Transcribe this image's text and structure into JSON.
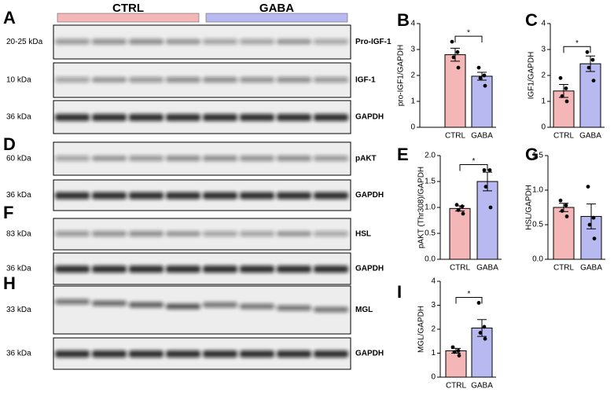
{
  "blots": {
    "groups": [
      {
        "name": "CTRL",
        "color": "#f4b6b6"
      },
      {
        "name": "GABA",
        "color": "#b7b9f0"
      }
    ],
    "panels": [
      {
        "letter": "A",
        "rows": [
          {
            "kda": "20-25 kDa",
            "label": "Pro-IGF-1"
          },
          {
            "kda": "10 kDa",
            "label": "IGF-1"
          },
          {
            "kda": "36 kDa",
            "label": "GAPDH"
          }
        ]
      },
      {
        "letter": "D",
        "rows": [
          {
            "kda": "60 kDa",
            "label": "pAKT"
          },
          {
            "kda": "36 kDa",
            "label": "GAPDH"
          }
        ]
      },
      {
        "letter": "F",
        "rows": [
          {
            "kda": "83  kDa",
            "label": "HSL"
          },
          {
            "kda": "36 kDa",
            "label": "GAPDH"
          }
        ]
      },
      {
        "letter": "H",
        "rows": [
          {
            "kda": "33  kDa",
            "label": "MGL"
          },
          {
            "kda": "36 kDa",
            "label": "GAPDH"
          }
        ]
      }
    ]
  },
  "chart_data": [
    {
      "type": "bar",
      "panel": "B",
      "ylabel": "pro-IGF1/GAPDH",
      "categories": [
        "CTRL",
        "GABA"
      ],
      "colors": [
        "#f4b6b6",
        "#b7b9f0"
      ],
      "values": [
        2.8,
        1.97
      ],
      "errors": [
        0.25,
        0.15
      ],
      "points": [
        [
          3.3,
          2.9,
          2.7,
          2.3
        ],
        [
          2.3,
          2.0,
          1.9,
          1.6
        ]
      ],
      "ylim": [
        0,
        4
      ],
      "yticks": [
        0,
        1,
        2,
        3,
        4
      ],
      "annotation": "*"
    },
    {
      "type": "bar",
      "panel": "C",
      "ylabel": "IGF1/GAPDH",
      "categories": [
        "CTRL",
        "GABA"
      ],
      "colors": [
        "#f4b6b6",
        "#b7b9f0"
      ],
      "values": [
        1.4,
        2.45
      ],
      "errors": [
        0.25,
        0.3
      ],
      "points": [
        [
          1.9,
          1.5,
          1.2,
          1.0
        ],
        [
          2.9,
          2.6,
          2.3,
          1.8
        ]
      ],
      "ylim": [
        0,
        4
      ],
      "yticks": [
        0,
        1,
        2,
        3,
        4
      ],
      "annotation": "*"
    },
    {
      "type": "bar",
      "panel": "E",
      "ylabel": "pAKT (Thr308)/GAPDH",
      "categories": [
        "CTRL",
        "GABA"
      ],
      "colors": [
        "#f4b6b6",
        "#b7b9f0"
      ],
      "values": [
        0.98,
        1.5
      ],
      "errors": [
        0.05,
        0.18
      ],
      "points": [
        [
          1.05,
          1.02,
          0.95,
          0.88
        ],
        [
          1.72,
          1.72,
          1.4,
          1.0
        ]
      ],
      "ylim": [
        0,
        2
      ],
      "yticks": [
        {
          "value": 0,
          "label": "0.0"
        },
        0.5,
        {
          "value": 1,
          "label": "1.0"
        },
        1.5,
        {
          "value": 2,
          "label": "2.0"
        }
      ],
      "annotation": "*"
    },
    {
      "type": "bar",
      "panel": "G",
      "ylabel": "HSL/GAPDH",
      "categories": [
        "CTRL",
        "GABA"
      ],
      "colors": [
        "#f4b6b6",
        "#b7b9f0"
      ],
      "values": [
        0.75,
        0.62
      ],
      "errors": [
        0.06,
        0.18
      ],
      "points": [
        [
          0.85,
          0.78,
          0.7,
          0.62
        ],
        [
          1.05,
          0.6,
          0.5,
          0.3
        ]
      ],
      "ylim": [
        0,
        1.5
      ],
      "yticks": [
        {
          "value": 0,
          "label": "0.0"
        },
        0.5,
        {
          "value": 1,
          "label": "1.0"
        },
        1.5
      ]
    },
    {
      "type": "bar",
      "panel": "I",
      "ylabel": "MGL/GAPDH",
      "categories": [
        "CTRL",
        "GABA"
      ],
      "colors": [
        "#f4b6b6",
        "#b7b9f0"
      ],
      "values": [
        1.1,
        2.05
      ],
      "errors": [
        0.1,
        0.35
      ],
      "points": [
        [
          1.25,
          1.1,
          1.05,
          0.9
        ],
        [
          3.1,
          2.1,
          1.85,
          1.6
        ]
      ],
      "ylim": [
        0,
        4
      ],
      "yticks": [
        0,
        1,
        2,
        3,
        4
      ],
      "annotation": "*"
    }
  ]
}
